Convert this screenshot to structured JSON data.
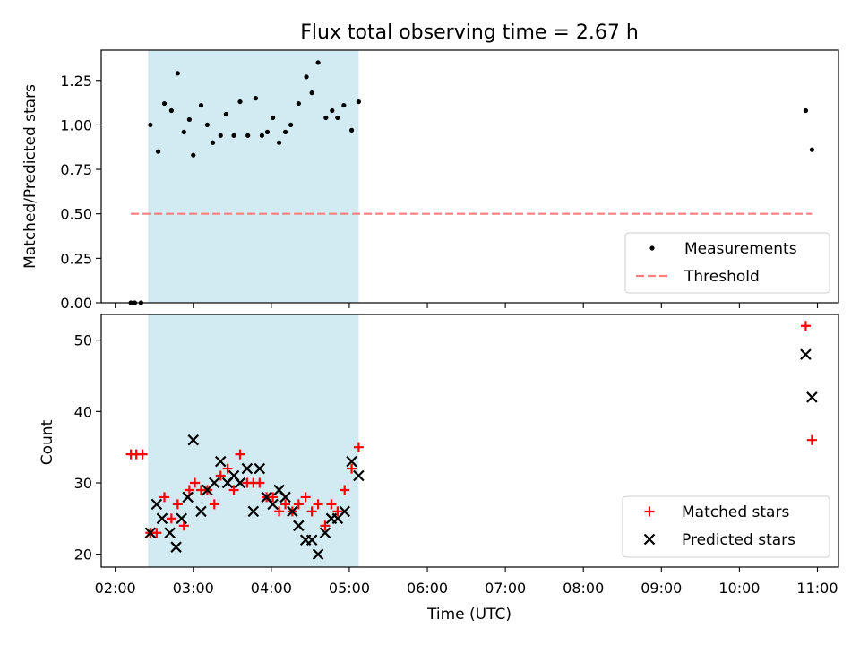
{
  "chart_data": [
    {
      "type": "scatter",
      "title": "Flux total observing time = 2.67 h",
      "ylabel": "Matched/Predicted stars",
      "ylim": [
        0,
        1.42
      ],
      "yticks": [
        "0.00",
        "0.25",
        "0.50",
        "0.75",
        "1.00",
        "1.25"
      ],
      "ytick_values": [
        0,
        0.25,
        0.5,
        0.75,
        1.0,
        1.25
      ],
      "shaded_span": {
        "start_hour": 2.42,
        "end_hour": 5.12,
        "color": "#add8e6"
      },
      "threshold": {
        "name": "Threshold",
        "value": 0.5,
        "x_start_hour": 2.2,
        "x_end_hour": 10.93,
        "color": "#ff7f7f"
      },
      "legend": {
        "placement": "lower-right",
        "entries": [
          "Measurements",
          "Threshold"
        ]
      },
      "series": [
        {
          "name": "Measurements",
          "color": "#000000",
          "marker": "dot",
          "x": [
            2.2,
            2.25,
            2.33,
            2.45,
            2.55,
            2.63,
            2.72,
            2.8,
            2.88,
            2.95,
            3.0,
            3.1,
            3.18,
            3.25,
            3.35,
            3.42,
            3.52,
            3.6,
            3.7,
            3.8,
            3.88,
            3.95,
            4.02,
            4.1,
            4.18,
            4.25,
            4.35,
            4.45,
            4.52,
            4.6,
            4.7,
            4.78,
            4.85,
            4.93,
            5.03,
            5.12,
            10.85,
            10.93
          ],
          "y": [
            0.0,
            0.0,
            0.0,
            1.0,
            0.85,
            1.12,
            1.08,
            1.29,
            0.96,
            1.03,
            0.83,
            1.11,
            1.0,
            0.9,
            0.94,
            1.06,
            0.94,
            1.13,
            0.94,
            1.15,
            0.94,
            0.96,
            1.04,
            0.9,
            0.96,
            1.0,
            1.12,
            1.27,
            1.18,
            1.35,
            1.04,
            1.08,
            1.04,
            1.11,
            0.97,
            1.13,
            1.08,
            0.86
          ]
        }
      ]
    },
    {
      "type": "scatter",
      "xlabel": "Time (UTC)",
      "ylabel": "Count",
      "xlim_hours": [
        1.82,
        11.27
      ],
      "ylim": [
        18.2,
        53.6
      ],
      "xticks": [
        "02:00",
        "03:00",
        "04:00",
        "05:00",
        "06:00",
        "07:00",
        "08:00",
        "09:00",
        "10:00",
        "11:00"
      ],
      "xtick_hours": [
        2,
        3,
        4,
        5,
        6,
        7,
        8,
        9,
        10,
        11
      ],
      "yticks": [
        "20",
        "30",
        "40",
        "50"
      ],
      "ytick_values": [
        20,
        30,
        40,
        50
      ],
      "shaded_span": {
        "start_hour": 2.42,
        "end_hour": 5.12,
        "color": "#add8e6"
      },
      "legend": {
        "placement": "lower-right",
        "entries": [
          "Matched stars",
          "Predicted stars"
        ]
      },
      "series": [
        {
          "name": "Matched stars",
          "color": "#ff0000",
          "marker": "plus",
          "x": [
            2.2,
            2.27,
            2.35,
            2.45,
            2.53,
            2.63,
            2.72,
            2.8,
            2.88,
            2.95,
            3.02,
            3.1,
            3.18,
            3.27,
            3.35,
            3.44,
            3.52,
            3.6,
            3.69,
            3.77,
            3.85,
            3.94,
            4.02,
            4.1,
            4.18,
            4.27,
            4.35,
            4.44,
            4.52,
            4.6,
            4.69,
            4.77,
            4.85,
            4.94,
            5.03,
            5.12,
            10.85,
            10.93
          ],
          "y": [
            34,
            34,
            34,
            23,
            23,
            28,
            25,
            27,
            24,
            29,
            30,
            29,
            29,
            27,
            31,
            32,
            29,
            34,
            30,
            30,
            30,
            28,
            28,
            26,
            27,
            26,
            27,
            28,
            26,
            27,
            24,
            27,
            26,
            29,
            32,
            35,
            52,
            36
          ]
        },
        {
          "name": "Predicted stars",
          "color": "#000000",
          "marker": "x",
          "x": [
            2.45,
            2.53,
            2.6,
            2.7,
            2.78,
            2.85,
            2.93,
            3.0,
            3.1,
            3.18,
            3.27,
            3.35,
            3.44,
            3.52,
            3.6,
            3.69,
            3.77,
            3.85,
            3.94,
            4.02,
            4.1,
            4.18,
            4.27,
            4.35,
            4.44,
            4.52,
            4.6,
            4.69,
            4.77,
            4.85,
            4.94,
            5.03,
            5.12,
            10.85,
            10.93
          ],
          "y": [
            23,
            27,
            25,
            23,
            21,
            25,
            28,
            36,
            26,
            29,
            30,
            33,
            30,
            31,
            30,
            32,
            26,
            32,
            28,
            27,
            29,
            28,
            26,
            24,
            22,
            22,
            20,
            23,
            25,
            25,
            26,
            33,
            31,
            48,
            42
          ]
        }
      ]
    }
  ]
}
